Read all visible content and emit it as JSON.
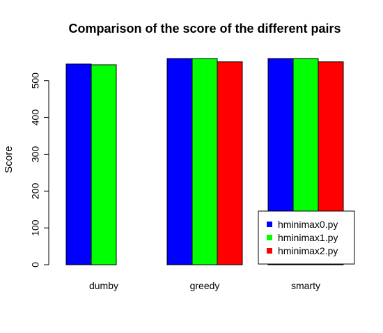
{
  "chart_data": {
    "type": "bar",
    "title": "Comparison of the score of the different pairs",
    "xlabel": "",
    "ylabel": "Score",
    "categories": [
      "dumby",
      "greedy",
      "smarty"
    ],
    "series": [
      {
        "name": "hminimax0.py",
        "color": "#0000ff",
        "values": [
          545,
          560,
          560
        ]
      },
      {
        "name": "hminimax1.py",
        "color": "#00ff00",
        "values": [
          543,
          560,
          560
        ]
      },
      {
        "name": "hminimax2.py",
        "color": "#ff0000",
        "values": [
          null,
          551,
          551
        ]
      }
    ],
    "ylim": [
      0,
      560
    ],
    "yticks": [
      0,
      100,
      200,
      300,
      400,
      500
    ],
    "grid": false,
    "legend_position": "bottom-right"
  }
}
